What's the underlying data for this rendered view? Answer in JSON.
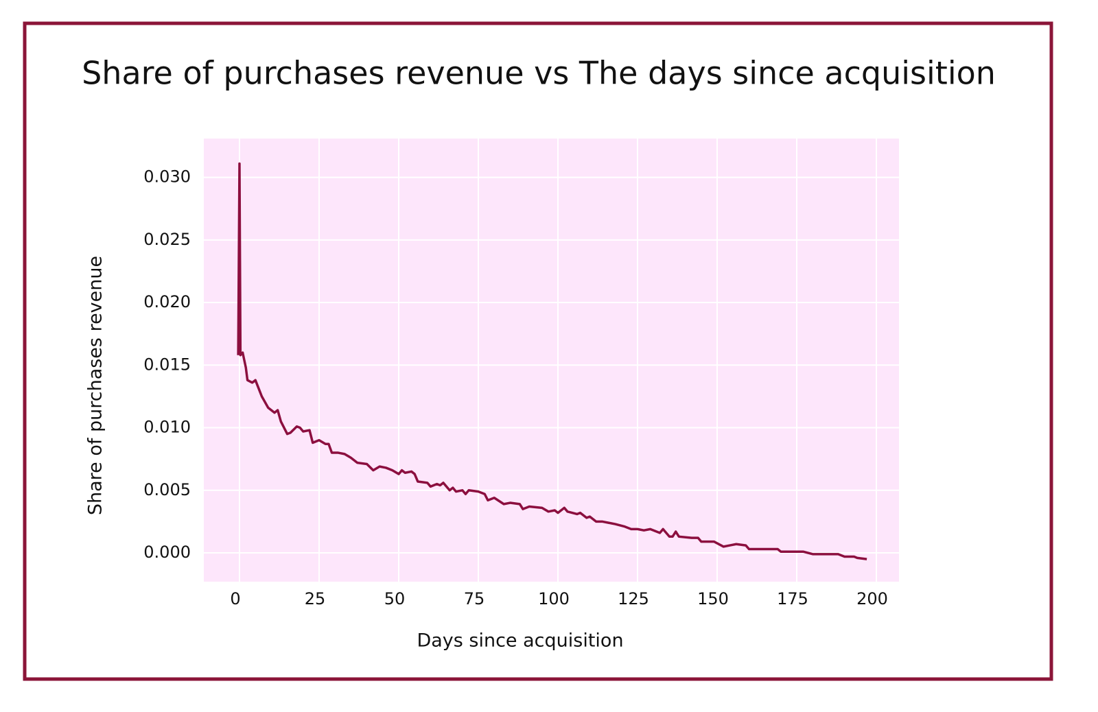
{
  "chart_data": {
    "type": "line",
    "title": "Share of purchases revenue vs The days since acquisition",
    "x_label": "Days since acquisition",
    "y_label": "Share of purchases revenue",
    "xlim": [
      -11.2,
      207.1
    ],
    "ylim": [
      -0.0023,
      0.0331
    ],
    "xticks": [
      0,
      25,
      50,
      75,
      100,
      125,
      150,
      175,
      200
    ],
    "yticks": [
      {
        "value": 0,
        "label": "0.000"
      },
      0.005,
      {
        "value": 0.01,
        "label": "0.010"
      },
      0.015,
      {
        "value": 0.02,
        "label": "0.020"
      },
      0.025,
      {
        "value": 0.03,
        "label": "0.030"
      }
    ],
    "grid": true,
    "series": [
      {
        "name": "Share of purchases revenue",
        "color": "#8c0f3f",
        "x": [
          -0.4,
          0,
          0.3,
          1,
          2,
          2.5,
          4,
          5,
          7,
          9,
          11,
          12,
          13,
          15,
          16,
          18,
          19,
          20,
          22,
          23,
          25,
          27,
          28,
          29,
          31,
          33,
          35,
          37,
          40,
          42,
          44,
          46,
          48,
          50,
          51,
          52,
          54,
          55,
          56,
          59,
          60,
          62,
          63,
          64,
          66,
          67,
          68,
          70,
          71,
          72,
          75,
          77,
          78,
          80,
          83,
          85,
          88,
          89,
          91,
          95,
          97,
          99,
          100,
          102,
          103,
          106,
          107,
          109,
          110,
          112,
          114,
          116,
          118,
          121,
          123,
          125,
          127,
          129,
          132,
          133,
          135,
          136,
          137,
          138,
          142,
          144,
          145,
          149,
          152,
          154,
          156,
          159,
          160,
          165,
          169,
          170,
          177,
          180,
          188,
          190,
          193,
          194,
          197
        ],
        "values": [
          0.0158,
          0.0311,
          0.0158,
          0.016,
          0.0148,
          0.0138,
          0.0136,
          0.0138,
          0.0125,
          0.0116,
          0.0112,
          0.0114,
          0.0105,
          0.0095,
          0.0096,
          0.0101,
          0.01,
          0.0097,
          0.0098,
          0.0088,
          0.009,
          0.0087,
          0.0087,
          0.008,
          0.008,
          0.0079,
          0.0076,
          0.0072,
          0.0071,
          0.0066,
          0.0069,
          0.0068,
          0.0066,
          0.0063,
          0.0066,
          0.0064,
          0.0065,
          0.0063,
          0.0057,
          0.0056,
          0.0053,
          0.0055,
          0.0054,
          0.0056,
          0.005,
          0.0052,
          0.0049,
          0.005,
          0.0047,
          0.005,
          0.0049,
          0.0047,
          0.0042,
          0.0044,
          0.0039,
          0.004,
          0.0039,
          0.0035,
          0.0037,
          0.0036,
          0.0033,
          0.0034,
          0.0032,
          0.0036,
          0.0033,
          0.0031,
          0.0032,
          0.0028,
          0.0029,
          0.0025,
          0.0025,
          0.0024,
          0.0023,
          0.0021,
          0.0019,
          0.0019,
          0.0018,
          0.0019,
          0.0016,
          0.0019,
          0.0013,
          0.0013,
          0.0017,
          0.0013,
          0.0012,
          0.0012,
          0.0009,
          0.0009,
          0.0005,
          0.0006,
          0.0007,
          0.0006,
          0.0003,
          0.0003,
          0.0003,
          0.0001,
          0.0001,
          -0.0001,
          -0.0001,
          -0.0003,
          -0.0003,
          -0.0004,
          -0.0005
        ]
      }
    ]
  }
}
